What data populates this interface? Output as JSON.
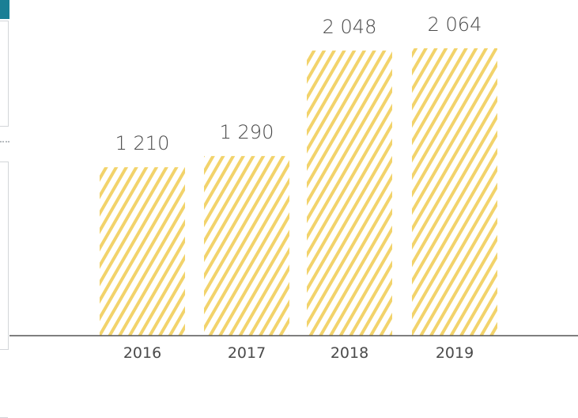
{
  "colors": {
    "bar_stripe": "#f2d36b",
    "axis": "#555555",
    "text": "#4a4a4a",
    "panel_header": "#1a7f95"
  },
  "chart_data": {
    "type": "bar",
    "categories": [
      "2016",
      "2017",
      "2018",
      "2019"
    ],
    "values": [
      1210,
      1290,
      2048,
      2064
    ],
    "value_labels": [
      "1 210",
      "1 290",
      "2 048",
      "2 064"
    ],
    "title": "",
    "xlabel": "",
    "ylabel": "",
    "ylim": [
      0,
      2250
    ],
    "grid": false,
    "fill_pattern": "diagonal-hatch"
  }
}
